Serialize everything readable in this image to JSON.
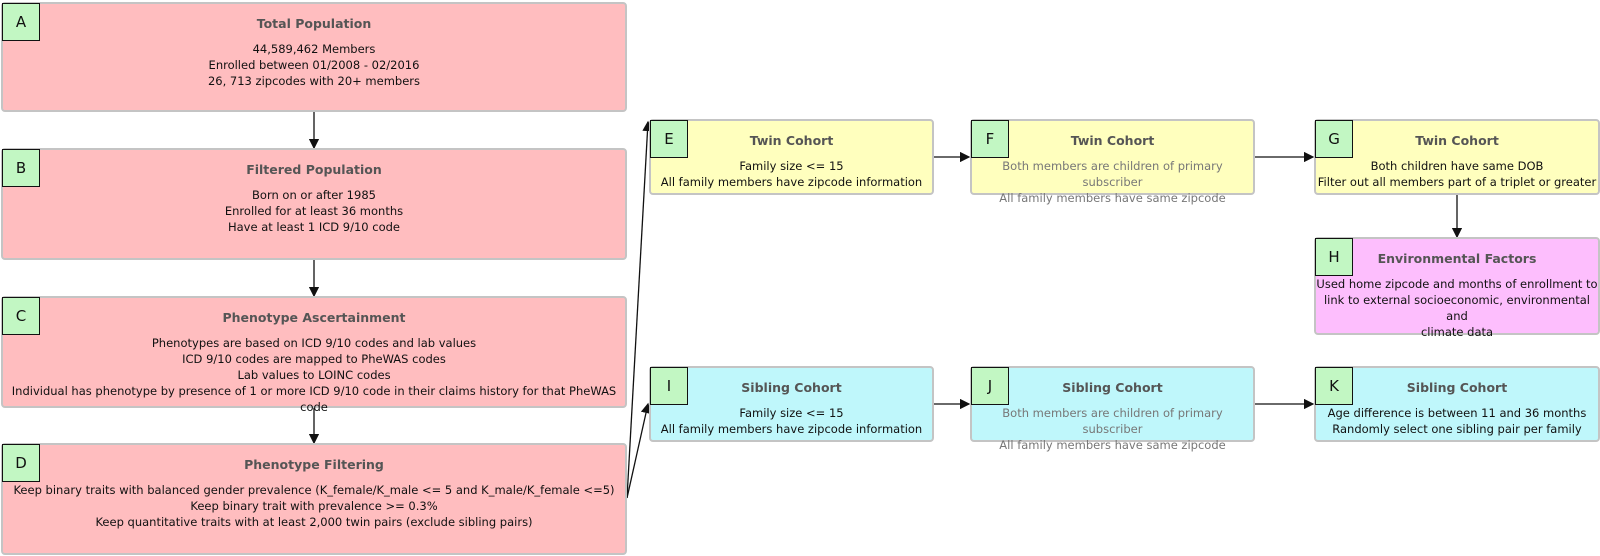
{
  "nodes": [
    {
      "label": "A",
      "title": "Total Population",
      "lines": [
        "44,589,462 Members",
        "Enrolled between 01/2008 - 02/2016",
        "26, 713 zipcodes with 20+ members"
      ]
    },
    {
      "label": "B",
      "title": "Filtered Population",
      "lines": [
        "Born on or after 1985",
        "Enrolled for at least 36 months",
        "Have at least 1 ICD 9/10 code"
      ]
    },
    {
      "label": "C",
      "title": "Phenotype Ascertainment",
      "lines": [
        "Phenotypes are based on ICD 9/10 codes and lab values",
        "ICD 9/10 codes are mapped to PheWAS codes",
        "Lab values to LOINC codes",
        "Individual has phenotype by presence of 1 or more ICD 9/10 code in their claims history for that PheWAS code"
      ]
    },
    {
      "label": "D",
      "title": "Phenotype Filtering",
      "lines": [
        "Keep binary traits with balanced gender prevalence (K_female/K_male <= 5 and K_male/K_female <=5)",
        "Keep binary trait with prevalence >= 0.3%",
        "Keep quantitative traits with at least 2,000 twin pairs (exclude sibling pairs)"
      ]
    },
    {
      "label": "E",
      "title": "Twin Cohort",
      "lines": [
        "Family size <= 15",
        "All family members have zipcode information"
      ]
    },
    {
      "label": "F",
      "title": "Twin Cohort",
      "lines": [
        "Both members are children of primary subscriber",
        "All family members have same zipcode"
      ]
    },
    {
      "label": "G",
      "title": "Twin Cohort",
      "lines": [
        "Both children have same DOB",
        "Filter out all members part of a triplet or greater"
      ]
    },
    {
      "label": "H",
      "title": "Environmental Factors",
      "lines": [
        "Used home zipcode and months of enrollment to",
        "link to external socioeconomic, environmental and",
        "climate data"
      ]
    },
    {
      "label": "I",
      "title": "Sibling Cohort",
      "lines": [
        "Family size <= 15",
        "All family members have zipcode information"
      ]
    },
    {
      "label": "J",
      "title": "Sibling Cohort",
      "lines": [
        "Both members are children of primary subscriber",
        "All family members have same zipcode"
      ]
    },
    {
      "label": "K",
      "title": "Sibling Cohort",
      "lines": [
        "Age difference is between 11 and 36 months",
        "Randomly select one sibling pair per family"
      ]
    }
  ]
}
